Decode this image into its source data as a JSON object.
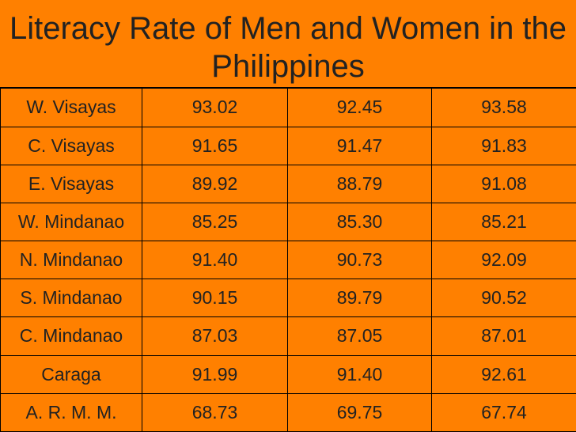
{
  "title": "Literacy Rate of Men and Women in the Philippines",
  "rows": [
    {
      "region": "W. Visayas",
      "v1": "93.02",
      "v2": "92.45",
      "v3": "93.58"
    },
    {
      "region": "C. Visayas",
      "v1": "91.65",
      "v2": "91.47",
      "v3": "91.83"
    },
    {
      "region": "E. Visayas",
      "v1": "89.92",
      "v2": "88.79",
      "v3": "91.08"
    },
    {
      "region": "W. Mindanao",
      "v1": "85.25",
      "v2": "85.30",
      "v3": "85.21"
    },
    {
      "region": "N. Mindanao",
      "v1": "91.40",
      "v2": "90.73",
      "v3": "92.09"
    },
    {
      "region": "S. Mindanao",
      "v1": "90.15",
      "v2": "89.79",
      "v3": "90.52"
    },
    {
      "region": "C. Mindanao",
      "v1": "87.03",
      "v2": "87.05",
      "v3": "87.01"
    },
    {
      "region": "Caraga",
      "v1": "91.99",
      "v2": "91.40",
      "v3": "92.61"
    },
    {
      "region": "A. R. M. M.",
      "v1": "68.73",
      "v2": "69.75",
      "v3": "67.74"
    }
  ],
  "colors": {
    "background": "#ff8000",
    "text": "#222222",
    "border": "#000000"
  }
}
